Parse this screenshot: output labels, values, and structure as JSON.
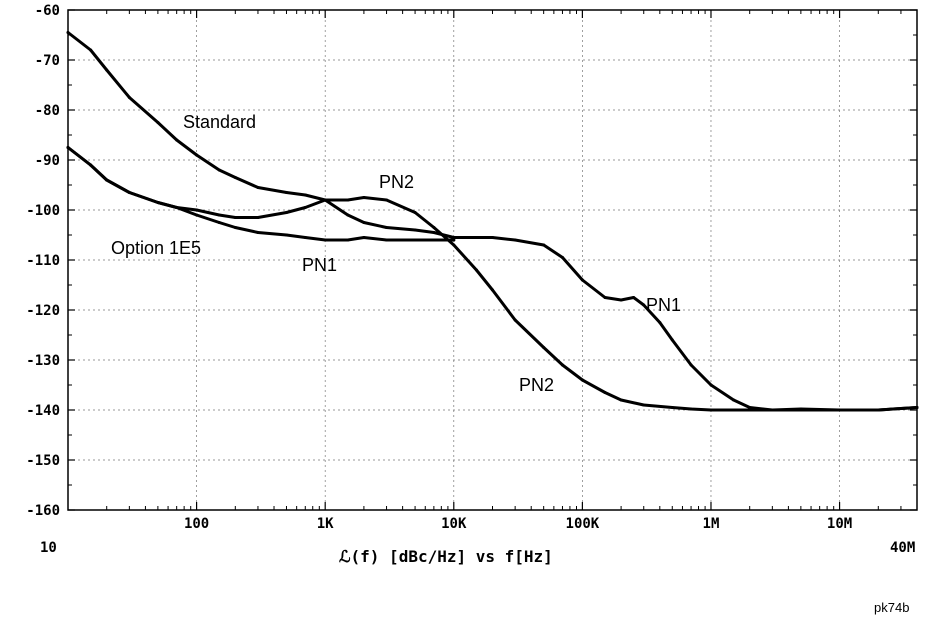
{
  "chart_data": {
    "type": "line",
    "title": "",
    "xlabel": "ℒ(f) [dBc/Hz] vs f[Hz]",
    "ylabel": "",
    "x_scale": "log",
    "xlim": [
      10,
      40000000
    ],
    "ylim": [
      -160,
      -60
    ],
    "grid": true,
    "y_ticks": [
      {
        "value": -60,
        "label": "-60"
      },
      {
        "value": -70,
        "label": "-70"
      },
      {
        "value": -80,
        "label": "-80"
      },
      {
        "value": -90,
        "label": "-90"
      },
      {
        "value": -100,
        "label": "-100"
      },
      {
        "value": -110,
        "label": "-110"
      },
      {
        "value": -120,
        "label": "-120"
      },
      {
        "value": -130,
        "label": "-130"
      },
      {
        "value": -140,
        "label": "-140"
      },
      {
        "value": -150,
        "label": "-150"
      },
      {
        "value": -160,
        "label": "-160"
      }
    ],
    "x_ticks": [
      {
        "value": 100,
        "label": "100"
      },
      {
        "value": 1000,
        "label": "1K"
      },
      {
        "value": 10000,
        "label": "10K"
      },
      {
        "value": 100000,
        "label": "100K"
      },
      {
        "value": 1000000,
        "label": "1M"
      },
      {
        "value": 10000000,
        "label": "10M"
      }
    ],
    "x_end_labels": {
      "start": "10",
      "end": "40M"
    },
    "annotations": [
      {
        "text": "Standard",
        "x": 40,
        "y": -82.5
      },
      {
        "text": "PN2",
        "x": 2800,
        "y": -95.5
      },
      {
        "text": "Option 1E5",
        "x": 33,
        "y": -107.5
      },
      {
        "text": "PN1",
        "x": 600,
        "y": -111.5
      },
      {
        "text": "PN1",
        "x": 400000,
        "y": -119.5
      },
      {
        "text": "PN2",
        "x": 45000,
        "y": -135.5
      }
    ],
    "series": [
      {
        "x": [
          10,
          15,
          20,
          30,
          50,
          70,
          100,
          150,
          200,
          300,
          500,
          700,
          1000
        ],
        "values": [
          -64.5,
          -68,
          -72,
          -77.5,
          -82.5,
          -86,
          -89,
          -92,
          -93.5,
          -95.5,
          -96.5,
          -97,
          -98
        ]
      },
      {
        "x": [
          1000,
          1500,
          2000,
          3000,
          5000,
          7000,
          10000,
          15000,
          20000,
          30000,
          50000,
          70000,
          100000,
          150000,
          200000,
          300000,
          500000,
          700000,
          1000000,
          1500000,
          2000000,
          3000000,
          5000000,
          10000000,
          20000000,
          40000000
        ],
        "values": [
          -98,
          -98,
          -97.5,
          -98,
          -100.5,
          -103.5,
          -107,
          -112,
          -116,
          -122,
          -127.5,
          -131,
          -134,
          -136.5,
          -138,
          -139,
          -139.5,
          -139.8,
          -140,
          -140,
          -140,
          -140,
          -139.8,
          -140,
          -140,
          -139.5
        ]
      },
      {
        "x": [
          1000,
          1500,
          2000,
          3000,
          5000,
          7000,
          10000,
          15000,
          20000,
          30000,
          50000,
          70000,
          100000,
          150000,
          200000,
          250000,
          300000,
          400000,
          500000,
          700000,
          1000000,
          1500000,
          2000000,
          3000000,
          5000000,
          10000000,
          20000000,
          40000000
        ],
        "values": [
          -98,
          -101,
          -102.5,
          -103.5,
          -104,
          -104.5,
          -105.5,
          -105.5,
          -105.5,
          -106,
          -107,
          -109.5,
          -114,
          -117.5,
          -118,
          -117.5,
          -119,
          -122.5,
          -126,
          -131,
          -135,
          -138,
          -139.5,
          -140,
          -140,
          -140,
          -140,
          -139.5
        ]
      },
      {
        "x": [
          10,
          15,
          20,
          30,
          50,
          70,
          100,
          150,
          200,
          300,
          500,
          700,
          1000,
          1500,
          2000,
          3000,
          5000,
          7000,
          10000
        ],
        "values": [
          -87.5,
          -91,
          -94,
          -96.5,
          -98.5,
          -99.5,
          -101,
          -102.5,
          -103.5,
          -104.5,
          -105,
          -105.5,
          -106,
          -106,
          -105.5,
          -106,
          -106,
          -106,
          -106
        ]
      },
      {
        "x": [
          10,
          15,
          20,
          30,
          50,
          70,
          100,
          150,
          200,
          300,
          500,
          700,
          1000
        ],
        "values": [
          -87.5,
          -91,
          -94,
          -96.5,
          -98.5,
          -99.5,
          -100,
          -101,
          -101.5,
          -101.5,
          -100.5,
          -99.5,
          -98
        ]
      }
    ]
  },
  "footer": {
    "code": "pk74b"
  }
}
